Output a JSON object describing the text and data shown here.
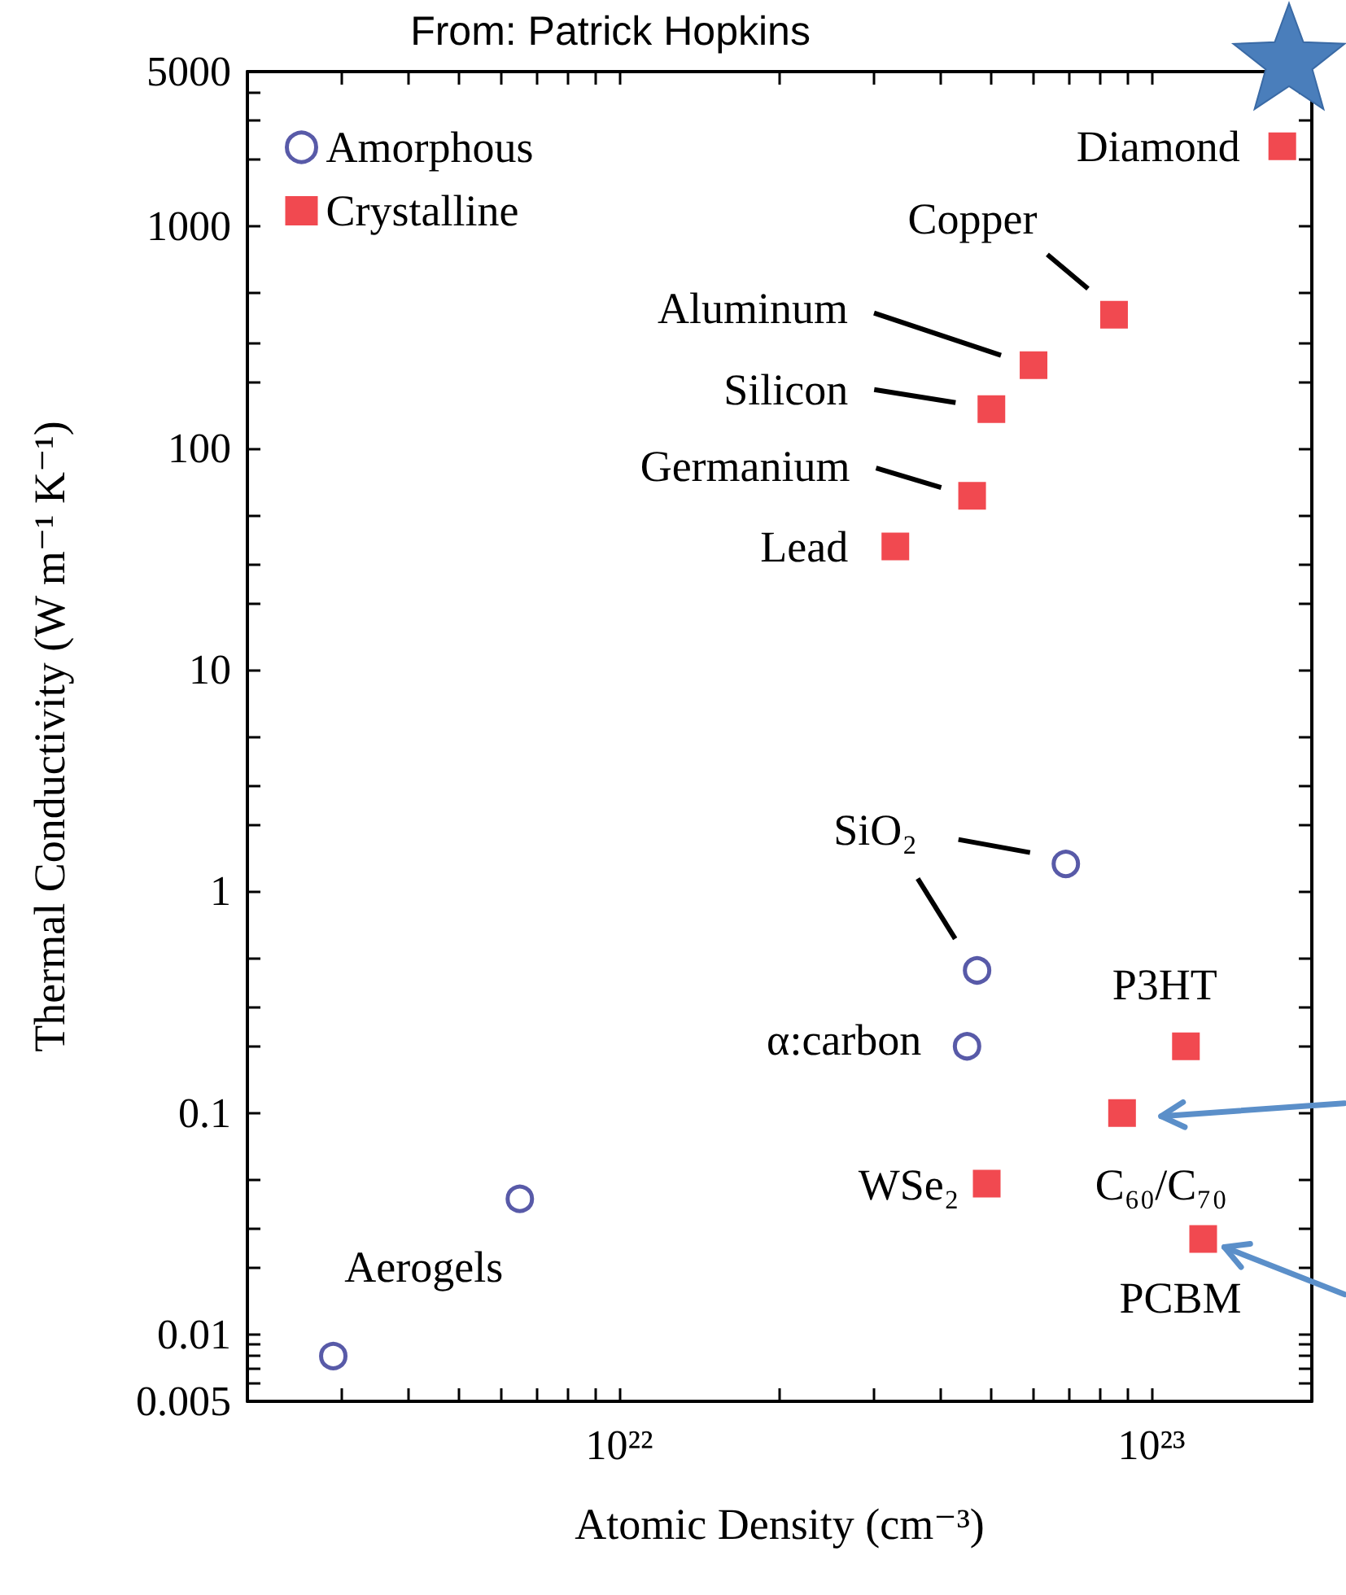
{
  "chart_data": {
    "type": "scatter",
    "title": "From: Patrick Hopkins",
    "xlabel": "Atomic Density (cm⁻³)",
    "ylabel": "Thermal Conductivity (W m⁻¹ K⁻¹)",
    "log": "xy",
    "grid": false,
    "legend": "top left",
    "xlim": [
      2e+21,
      2e+23
    ],
    "ylim": [
      0.005,
      5000
    ],
    "xticks": [
      {
        "value": 3e+21,
        "label": null
      },
      {
        "value": 4e+21,
        "label": null
      },
      {
        "value": 5e+21,
        "label": null
      },
      {
        "value": 6e+21,
        "label": null
      },
      {
        "value": 7e+21,
        "label": null
      },
      {
        "value": 8e+21,
        "label": null
      },
      {
        "value": 9e+21,
        "label": null
      },
      {
        "value": 1e+22,
        "label": "10²²"
      },
      {
        "value": 2e+22,
        "label": null
      },
      {
        "value": 3e+22,
        "label": null
      },
      {
        "value": 4e+22,
        "label": null
      },
      {
        "value": 5e+22,
        "label": null
      },
      {
        "value": 6e+22,
        "label": null
      },
      {
        "value": 7e+22,
        "label": null
      },
      {
        "value": 8e+22,
        "label": null
      },
      {
        "value": 9e+22,
        "label": null
      },
      {
        "value": 1e+23,
        "label": "10²³"
      }
    ],
    "yticks": [
      0.005,
      {
        "value": 0.006,
        "label": null
      },
      {
        "value": 0.007,
        "label": null
      },
      {
        "value": 0.008,
        "label": null
      },
      {
        "value": 0.009,
        "label": null
      },
      0.01,
      {
        "value": 0.02,
        "label": null
      },
      {
        "value": 0.03,
        "label": null
      },
      {
        "value": 0.05,
        "label": null
      },
      0.1,
      {
        "value": 0.2,
        "label": null
      },
      {
        "value": 0.3,
        "label": null
      },
      {
        "value": 0.5,
        "label": null
      },
      1,
      {
        "value": 2,
        "label": null
      },
      {
        "value": 3,
        "label": null
      },
      {
        "value": 5,
        "label": null
      },
      10,
      {
        "value": 20,
        "label": null
      },
      {
        "value": 30,
        "label": null
      },
      {
        "value": 50,
        "label": null
      },
      100,
      {
        "value": 200,
        "label": null
      },
      {
        "value": 300,
        "label": null
      },
      {
        "value": 500,
        "label": null
      },
      1000,
      {
        "value": 2000,
        "label": null
      },
      {
        "value": 3000,
        "label": null
      },
      {
        "value": 4000,
        "label": null
      },
      5000
    ],
    "series": [
      {
        "name": "Amorphous",
        "color": "#2e3192",
        "marker": "circle",
        "x": [
          2.9e+21,
          6.5e+21,
          6.9e+22,
          4.7e+22,
          4.5e+22
        ],
        "values": [
          0.008,
          0.041,
          1.33,
          0.44,
          0.2
        ]
      },
      {
        "name": "Crystalline",
        "color": "#ed1c24",
        "marker": "square",
        "x": [
          1.76e+23,
          8.5e+22,
          6e+22,
          5e+22,
          4.6e+22,
          3.3e+22,
          1.16e+23,
          8.8e+22,
          4.9e+22,
          1.25e+23
        ],
        "values": [
          2300,
          400,
          237,
          150,
          61,
          36,
          0.2,
          0.1,
          0.048,
          0.027
        ]
      }
    ],
    "annotations": [
      {
        "text": "Diamond",
        "x": 1.76e+23,
        "y": 2300
      },
      {
        "text": "Copper",
        "x": 8.5e+22,
        "y": 400
      },
      "Aluminum",
      "Silicon",
      {
        "text": "Germanium",
        "x": 4.6e+22,
        "y": 61
      },
      {
        "text": "Lead",
        "x": 3.3e+22,
        "y": 36
      },
      "SiO₂",
      {
        "text": "α:carbon",
        "x": 4.5e+22,
        "y": 0.2
      },
      {
        "text": "P3HT",
        "x": 1.16e+23,
        "y": 0.2
      },
      {
        "text": "WSe₂",
        "x": 4.9e+22,
        "y": 0.048
      },
      {
        "text": "C₆₀/C₇₀",
        "x": 8.8e+22,
        "y": 0.1
      },
      {
        "text": "PCBM",
        "x": 1.25e+23,
        "y": 0.027
      },
      {
        "text": "Aerogels",
        "x": 6.5e+21,
        "y": 0.041
      }
    ]
  }
}
